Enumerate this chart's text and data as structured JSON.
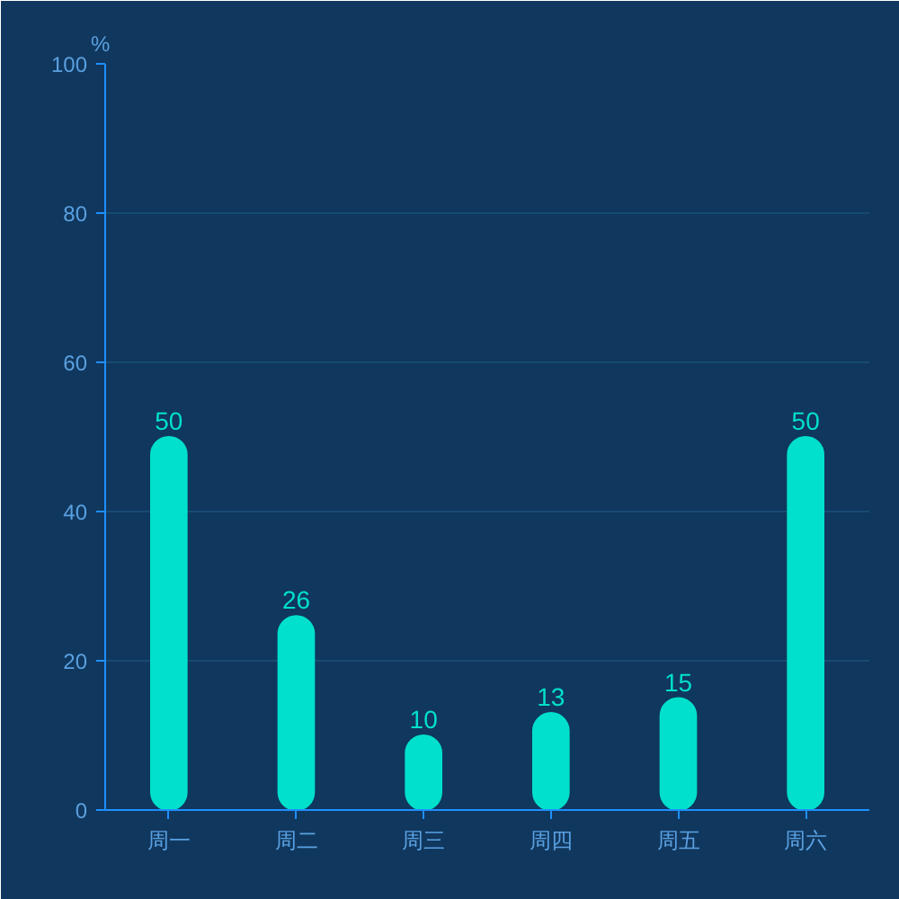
{
  "chart_data": {
    "type": "bar",
    "ylabel": "%",
    "categories": [
      "周一",
      "周二",
      "周三",
      "周四",
      "周五",
      "周六"
    ],
    "values": [
      50,
      26,
      10,
      13,
      15,
      50
    ],
    "color": "#00e0cc",
    "ylim": [
      0,
      100
    ],
    "yticks": [
      0,
      20,
      40,
      60,
      80,
      100
    ],
    "grid": "y",
    "data_labels": true
  }
}
